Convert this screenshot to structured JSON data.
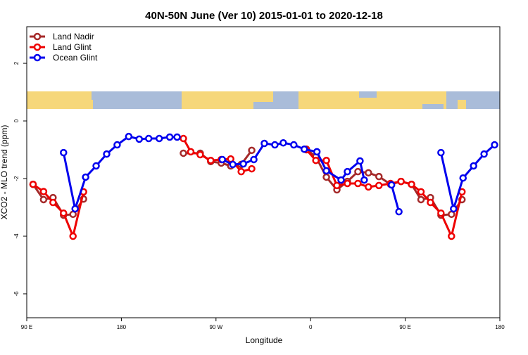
{
  "chart_data": {
    "type": "line",
    "title": "40N-50N June (Ver 10)   2015-01-01 to 2020-12-18",
    "x_label": "Longitude",
    "y_label": "XCO2 - MLO trend (ppm)",
    "xlim": [
      90,
      540
    ],
    "xticks": [
      {
        "value": 90,
        "label": "90 E"
      },
      {
        "value": 180,
        "label": "180"
      },
      {
        "value": 270,
        "label": "90 W"
      },
      {
        "value": 360,
        "label": "0"
      },
      {
        "value": 450,
        "label": "90 E"
      },
      {
        "value": 540,
        "label": "180"
      }
    ],
    "ylim": [
      -6.83,
      3.27
    ],
    "yticks": [
      -6,
      -4,
      -2,
      0,
      2
    ],
    "legend": "top-left",
    "series": [
      {
        "name": "Land Nadir",
        "color": "#a52a2a",
        "x": [
          96,
          106,
          115,
          125,
          134,
          144,
          null,
          239,
          255,
          265,
          275,
          284,
          294,
          304,
          null,
          356,
          365,
          375,
          385,
          395,
          405,
          415,
          425,
          436,
          446,
          456,
          465,
          474,
          484,
          494,
          504
        ],
        "values": [
          -2.2,
          -2.73,
          -2.66,
          -3.27,
          -3.24,
          -2.71,
          null,
          -1.12,
          -1.12,
          -1.41,
          -1.46,
          -1.56,
          -1.51,
          -1.02,
          null,
          -0.98,
          -1.24,
          -1.95,
          -2.39,
          -2.1,
          -1.76,
          -1.8,
          -1.93,
          -2.2,
          -2.1,
          -2.2,
          -2.73,
          -2.66,
          -3.27,
          -3.24,
          -2.73
        ]
      },
      {
        "name": "Land Glint",
        "color": "#ee0000",
        "x": [
          96,
          106,
          115,
          125,
          134,
          144,
          null,
          239,
          246,
          255,
          265,
          275,
          284,
          294,
          304,
          null,
          356,
          365,
          375,
          385,
          395,
          405,
          415,
          425,
          436,
          446,
          456,
          465,
          474,
          484,
          494,
          504
        ],
        "values": [
          -2.2,
          -2.45,
          -2.83,
          -3.2,
          -4.0,
          -2.46,
          null,
          -0.61,
          -1.07,
          -1.17,
          -1.37,
          -1.34,
          -1.32,
          -1.76,
          -1.66,
          null,
          -1.0,
          -1.37,
          -1.37,
          -2.24,
          -2.17,
          -2.17,
          -2.29,
          -2.24,
          -2.17,
          -2.1,
          -2.2,
          -2.46,
          -2.83,
          -3.2,
          -4.0,
          -2.46
        ]
      },
      {
        "name": "Ocean Glint",
        "color": "#0000ee",
        "x": [
          125,
          136,
          146,
          156,
          166,
          176,
          187,
          197,
          206,
          216,
          226,
          233,
          null,
          276,
          286,
          296,
          306,
          316,
          326,
          334,
          344,
          354,
          366,
          375,
          389,
          395,
          407,
          411,
          null,
          437,
          444,
          null,
          484,
          496,
          505,
          515,
          525,
          535
        ],
        "values": [
          -1.1,
          -3.05,
          -1.95,
          -1.56,
          -1.15,
          -0.83,
          -0.54,
          -0.63,
          -0.61,
          -0.61,
          -0.56,
          -0.56,
          null,
          -1.34,
          -1.51,
          -1.49,
          -1.34,
          -0.78,
          -0.83,
          -0.76,
          -0.83,
          -0.98,
          -1.07,
          -1.73,
          -2.05,
          -1.76,
          -1.39,
          -2.05,
          null,
          -2.22,
          -3.15,
          null,
          -1.1,
          -3.05,
          -1.98,
          -1.56,
          -1.15,
          -0.83
        ]
      }
    ]
  }
}
